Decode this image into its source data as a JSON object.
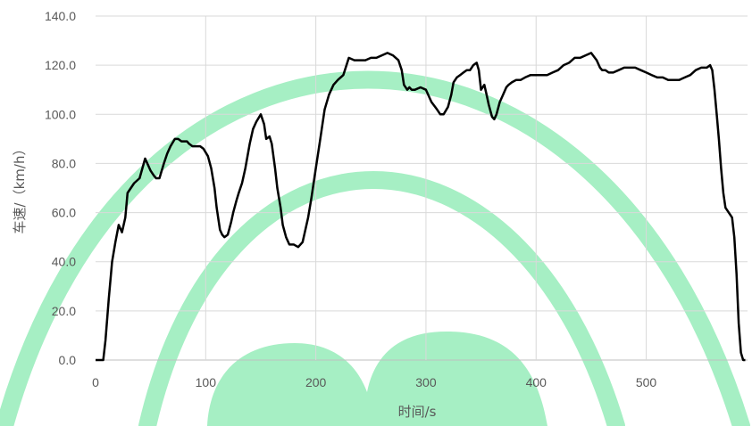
{
  "chart_data": {
    "type": "line",
    "title": "",
    "xlabel": "时间/s",
    "ylabel": "车速/（km/h）",
    "xlim": [
      0,
      592
    ],
    "ylim": [
      0,
      140
    ],
    "xticks": [
      0,
      100,
      200,
      300,
      400,
      500
    ],
    "xtick_labels": [
      "0",
      "100",
      "200",
      "300",
      "400",
      "500"
    ],
    "yticks": [
      0,
      20,
      40,
      60,
      80,
      100,
      120,
      140
    ],
    "ytick_labels": [
      "0.0",
      "20.0",
      "40.0",
      "60.0",
      "80.0",
      "100.0",
      "120.0",
      "140.0"
    ],
    "grid": true,
    "legend": "none",
    "line_color": "#000000",
    "watermark_color": "#a6efc4",
    "series": [
      {
        "x": [
          0,
          7,
          9,
          12,
          15,
          18,
          21,
          24,
          27,
          29,
          32,
          35,
          40,
          45,
          50,
          53,
          55,
          58,
          62,
          65,
          68,
          72,
          75,
          78,
          80,
          83,
          85,
          88,
          92,
          95,
          98,
          102,
          105,
          108,
          110,
          113,
          115,
          117,
          120,
          123,
          125,
          128,
          130,
          133,
          136,
          140,
          143,
          146,
          150,
          153,
          155,
          158,
          160,
          163,
          165,
          168,
          170,
          173,
          176,
          180,
          184,
          188,
          190,
          193,
          196,
          200,
          204,
          208,
          212,
          216,
          220,
          225,
          230,
          235,
          237,
          240,
          245,
          250,
          255,
          260,
          265,
          270,
          275,
          278,
          280,
          283,
          285,
          287,
          290,
          295,
          300,
          305,
          310,
          313,
          316,
          320,
          323,
          325,
          328,
          331,
          334,
          337,
          340,
          343,
          346,
          348,
          350,
          353,
          355,
          357,
          360,
          362,
          364,
          367,
          370,
          373,
          375,
          378,
          382,
          386,
          390,
          395,
          400,
          405,
          410,
          415,
          420,
          425,
          430,
          435,
          440,
          445,
          450,
          455,
          458,
          460,
          463,
          466,
          470,
          475,
          480,
          485,
          490,
          495,
          500,
          505,
          510,
          515,
          520,
          525,
          530,
          535,
          540,
          545,
          550,
          555,
          558,
          560,
          562,
          564,
          566,
          568,
          570,
          572,
          575,
          578,
          580,
          582,
          584,
          586,
          588,
          590
        ],
        "y": [
          0,
          0,
          8,
          25,
          40,
          48,
          55,
          52,
          58,
          68,
          70,
          72,
          74,
          82,
          77,
          75,
          74,
          74,
          80,
          84,
          87,
          90,
          90,
          89,
          89,
          89,
          88,
          87,
          87,
          87,
          86,
          83,
          78,
          70,
          62,
          53,
          51,
          50,
          51,
          56,
          60,
          65,
          68,
          72,
          78,
          88,
          94,
          97,
          100,
          96,
          90,
          91,
          88,
          78,
          70,
          62,
          55,
          50,
          47,
          47,
          46,
          48,
          52,
          58,
          66,
          78,
          90,
          102,
          108,
          112,
          114,
          116,
          123,
          122,
          122,
          122,
          122,
          123,
          123,
          124,
          125,
          124,
          122,
          118,
          112,
          110,
          111,
          110,
          110,
          111,
          110,
          105,
          102,
          100,
          100,
          103,
          108,
          113,
          115,
          116,
          117,
          118,
          118,
          120,
          121,
          118,
          110,
          112,
          108,
          104,
          99,
          98,
          100,
          105,
          108,
          111,
          112,
          113,
          114,
          114,
          115,
          116,
          116,
          116,
          116,
          117,
          118,
          120,
          121,
          123,
          123,
          124,
          125,
          122,
          119,
          118,
          118,
          117,
          117,
          118,
          119,
          119,
          119,
          118,
          117,
          116,
          115,
          115,
          114,
          114,
          114,
          115,
          116,
          118,
          119,
          119,
          120,
          118,
          110,
          100,
          90,
          78,
          68,
          62,
          60,
          58,
          50,
          35,
          15,
          3,
          0,
          0
        ]
      }
    ]
  }
}
